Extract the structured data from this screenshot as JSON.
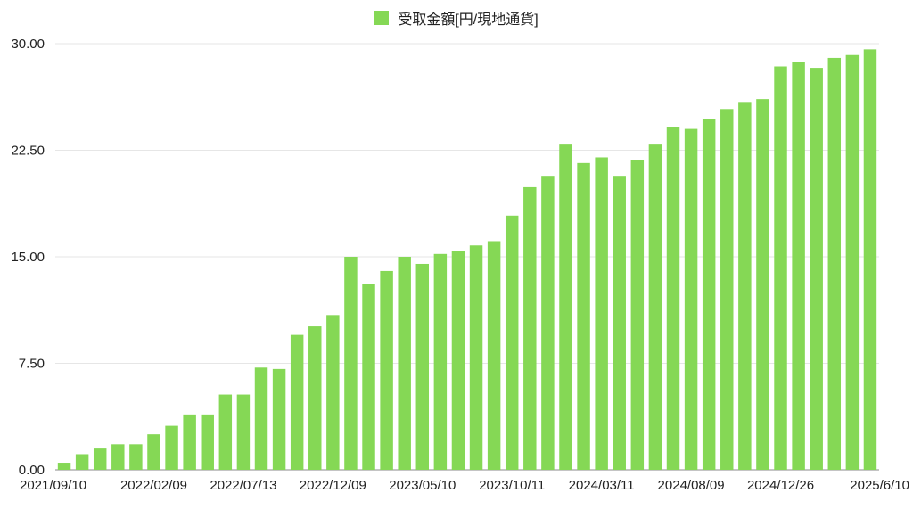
{
  "chart_data": {
    "type": "bar",
    "title": "",
    "xlabel": "",
    "ylabel": "",
    "legend": {
      "position": "top-center"
    },
    "grid": true,
    "ylim": [
      0,
      30
    ],
    "y_ticks": [
      "0.00",
      "7.50",
      "15.00",
      "22.50",
      "30.00"
    ],
    "x_tick_labels": [
      {
        "index": 0,
        "label": "2021/09/10"
      },
      {
        "index": 5,
        "label": "2022/02/09"
      },
      {
        "index": 10,
        "label": "2022/07/13"
      },
      {
        "index": 15,
        "label": "2022/12/09"
      },
      {
        "index": 20,
        "label": "2023/05/10"
      },
      {
        "index": 25,
        "label": "2023/10/11"
      },
      {
        "index": 30,
        "label": "2024/03/11"
      },
      {
        "index": 35,
        "label": "2024/08/09"
      },
      {
        "index": 40,
        "label": "2024/12/26"
      },
      {
        "index": 45,
        "label": "2025/6/10"
      }
    ],
    "series": [
      {
        "name": "受取金額[円/現地通貨]",
        "color": "#85d855",
        "values": [
          0.5,
          1.1,
          1.5,
          1.8,
          1.8,
          2.5,
          3.1,
          3.9,
          3.9,
          5.3,
          5.3,
          7.2,
          7.1,
          9.5,
          10.1,
          10.9,
          15.0,
          13.1,
          14.0,
          15.0,
          14.5,
          15.2,
          15.4,
          15.8,
          16.1,
          17.9,
          19.9,
          20.7,
          22.9,
          21.6,
          22.0,
          20.7,
          21.8,
          22.9,
          24.1,
          24.0,
          24.7,
          25.4,
          25.9,
          26.1,
          28.4,
          28.7,
          28.3,
          29.0,
          29.2,
          29.6
        ]
      }
    ]
  }
}
